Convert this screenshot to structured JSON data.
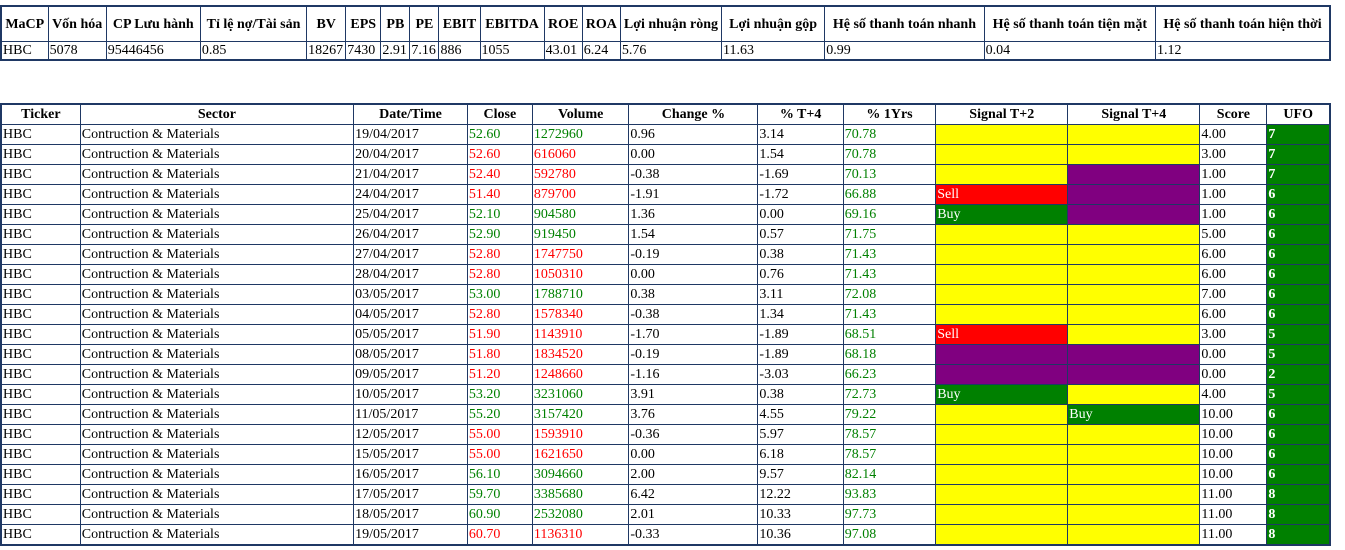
{
  "colors": {
    "border": "#1f3864",
    "up": "#008000",
    "down": "#ff0000",
    "yellow": "#ffff00",
    "purple": "#800080",
    "red": "#ff0000",
    "green": "#008000"
  },
  "summary": {
    "headers": [
      "MaCP",
      "Vốn hóa",
      "CP Lưu hành",
      "Tỉ lệ nợ/Tài sản",
      "BV",
      "EPS",
      "PB",
      "PE",
      "EBIT",
      "EBITDA",
      "ROE",
      "ROA",
      "Lợi nhuận ròng",
      "Lợi nhuận gộp",
      "Hệ số thanh toán nhanh",
      "Hệ số thanh toán tiện mặt",
      "Hệ số thanh toán hiện thời"
    ],
    "row": [
      "HBC",
      "5078",
      "95446456",
      "0.85",
      "18267",
      "7430",
      "2.91",
      "7.16",
      "886",
      "1055",
      "43.01",
      "6.24",
      "5.76",
      "11.63",
      "0.99",
      "0.04",
      "1.12"
    ]
  },
  "history": {
    "headers": [
      "Ticker",
      "Sector",
      "Date/Time",
      "Close",
      "Volume",
      "Change %",
      "% T+4",
      "% 1Yrs",
      "Signal T+2",
      "Signal T+4",
      "Score",
      "UFO"
    ],
    "rows": [
      {
        "ticker": "HBC",
        "sector": "Contruction & Materials",
        "date": "19/04/2017",
        "close": "52.60",
        "volume": "1272960",
        "change": "0.96",
        "t4": "3.14",
        "y1": "70.78",
        "s2": "",
        "s2c": "yellow",
        "s4": "",
        "s4c": "yellow",
        "score": "4.00",
        "ufo": "7",
        "dir": "up"
      },
      {
        "ticker": "HBC",
        "sector": "Contruction & Materials",
        "date": "20/04/2017",
        "close": "52.60",
        "volume": "616060",
        "change": "0.00",
        "t4": "1.54",
        "y1": "70.78",
        "s2": "",
        "s2c": "yellow",
        "s4": "",
        "s4c": "yellow",
        "score": "3.00",
        "ufo": "7",
        "dir": "down"
      },
      {
        "ticker": "HBC",
        "sector": "Contruction & Materials",
        "date": "21/04/2017",
        "close": "52.40",
        "volume": "592780",
        "change": "-0.38",
        "t4": "-1.69",
        "y1": "70.13",
        "s2": "",
        "s2c": "yellow",
        "s4": "",
        "s4c": "purple",
        "score": "1.00",
        "ufo": "7",
        "dir": "down"
      },
      {
        "ticker": "HBC",
        "sector": "Contruction & Materials",
        "date": "24/04/2017",
        "close": "51.40",
        "volume": "879700",
        "change": "-1.91",
        "t4": "-1.72",
        "y1": "66.88",
        "s2": "Sell",
        "s2c": "red",
        "s4": "",
        "s4c": "purple",
        "score": "1.00",
        "ufo": "6",
        "dir": "down"
      },
      {
        "ticker": "HBC",
        "sector": "Contruction & Materials",
        "date": "25/04/2017",
        "close": "52.10",
        "volume": "904580",
        "change": "1.36",
        "t4": "0.00",
        "y1": "69.16",
        "s2": "Buy",
        "s2c": "green",
        "s4": "",
        "s4c": "purple",
        "score": "1.00",
        "ufo": "6",
        "dir": "up"
      },
      {
        "ticker": "HBC",
        "sector": "Contruction & Materials",
        "date": "26/04/2017",
        "close": "52.90",
        "volume": "919450",
        "change": "1.54",
        "t4": "0.57",
        "y1": "71.75",
        "s2": "",
        "s2c": "yellow",
        "s4": "",
        "s4c": "yellow",
        "score": "5.00",
        "ufo": "6",
        "dir": "up"
      },
      {
        "ticker": "HBC",
        "sector": "Contruction & Materials",
        "date": "27/04/2017",
        "close": "52.80",
        "volume": "1747750",
        "change": "-0.19",
        "t4": "0.38",
        "y1": "71.43",
        "s2": "",
        "s2c": "yellow",
        "s4": "",
        "s4c": "yellow",
        "score": "6.00",
        "ufo": "6",
        "dir": "down"
      },
      {
        "ticker": "HBC",
        "sector": "Contruction & Materials",
        "date": "28/04/2017",
        "close": "52.80",
        "volume": "1050310",
        "change": "0.00",
        "t4": "0.76",
        "y1": "71.43",
        "s2": "",
        "s2c": "yellow",
        "s4": "",
        "s4c": "yellow",
        "score": "6.00",
        "ufo": "6",
        "dir": "down"
      },
      {
        "ticker": "HBC",
        "sector": "Contruction & Materials",
        "date": "03/05/2017",
        "close": "53.00",
        "volume": "1788710",
        "change": "0.38",
        "t4": "3.11",
        "y1": "72.08",
        "s2": "",
        "s2c": "yellow",
        "s4": "",
        "s4c": "yellow",
        "score": "7.00",
        "ufo": "6",
        "dir": "up"
      },
      {
        "ticker": "HBC",
        "sector": "Contruction & Materials",
        "date": "04/05/2017",
        "close": "52.80",
        "volume": "1578340",
        "change": "-0.38",
        "t4": "1.34",
        "y1": "71.43",
        "s2": "",
        "s2c": "yellow",
        "s4": "",
        "s4c": "yellow",
        "score": "6.00",
        "ufo": "6",
        "dir": "down"
      },
      {
        "ticker": "HBC",
        "sector": "Contruction & Materials",
        "date": "05/05/2017",
        "close": "51.90",
        "volume": "1143910",
        "change": "-1.70",
        "t4": "-1.89",
        "y1": "68.51",
        "s2": "Sell",
        "s2c": "red",
        "s4": "",
        "s4c": "yellow",
        "score": "3.00",
        "ufo": "5",
        "dir": "down"
      },
      {
        "ticker": "HBC",
        "sector": "Contruction & Materials",
        "date": "08/05/2017",
        "close": "51.80",
        "volume": "1834520",
        "change": "-0.19",
        "t4": "-1.89",
        "y1": "68.18",
        "s2": "",
        "s2c": "purple",
        "s4": "",
        "s4c": "purple",
        "score": "0.00",
        "ufo": "5",
        "dir": "down"
      },
      {
        "ticker": "HBC",
        "sector": "Contruction & Materials",
        "date": "09/05/2017",
        "close": "51.20",
        "volume": "1248660",
        "change": "-1.16",
        "t4": "-3.03",
        "y1": "66.23",
        "s2": "",
        "s2c": "purple",
        "s4": "",
        "s4c": "purple",
        "score": "0.00",
        "ufo": "2",
        "dir": "down"
      },
      {
        "ticker": "HBC",
        "sector": "Contruction & Materials",
        "date": "10/05/2017",
        "close": "53.20",
        "volume": "3231060",
        "change": "3.91",
        "t4": "0.38",
        "y1": "72.73",
        "s2": "Buy",
        "s2c": "green",
        "s4": "",
        "s4c": "yellow",
        "score": "4.00",
        "ufo": "5",
        "dir": "up"
      },
      {
        "ticker": "HBC",
        "sector": "Contruction & Materials",
        "date": "11/05/2017",
        "close": "55.20",
        "volume": "3157420",
        "change": "3.76",
        "t4": "4.55",
        "y1": "79.22",
        "s2": "",
        "s2c": "yellow",
        "s4": "Buy",
        "s4c": "green",
        "score": "10.00",
        "ufo": "6",
        "dir": "up"
      },
      {
        "ticker": "HBC",
        "sector": "Contruction & Materials",
        "date": "12/05/2017",
        "close": "55.00",
        "volume": "1593910",
        "change": "-0.36",
        "t4": "5.97",
        "y1": "78.57",
        "s2": "",
        "s2c": "yellow",
        "s4": "",
        "s4c": "yellow",
        "score": "10.00",
        "ufo": "6",
        "dir": "down"
      },
      {
        "ticker": "HBC",
        "sector": "Contruction & Materials",
        "date": "15/05/2017",
        "close": "55.00",
        "volume": "1621650",
        "change": "0.00",
        "t4": "6.18",
        "y1": "78.57",
        "s2": "",
        "s2c": "yellow",
        "s4": "",
        "s4c": "yellow",
        "score": "10.00",
        "ufo": "6",
        "dir": "down"
      },
      {
        "ticker": "HBC",
        "sector": "Contruction & Materials",
        "date": "16/05/2017",
        "close": "56.10",
        "volume": "3094660",
        "change": "2.00",
        "t4": "9.57",
        "y1": "82.14",
        "s2": "",
        "s2c": "yellow",
        "s4": "",
        "s4c": "yellow",
        "score": "10.00",
        "ufo": "6",
        "dir": "up"
      },
      {
        "ticker": "HBC",
        "sector": "Contruction & Materials",
        "date": "17/05/2017",
        "close": "59.70",
        "volume": "3385680",
        "change": "6.42",
        "t4": "12.22",
        "y1": "93.83",
        "s2": "",
        "s2c": "yellow",
        "s4": "",
        "s4c": "yellow",
        "score": "11.00",
        "ufo": "8",
        "dir": "up"
      },
      {
        "ticker": "HBC",
        "sector": "Contruction & Materials",
        "date": "18/05/2017",
        "close": "60.90",
        "volume": "2532080",
        "change": "2.01",
        "t4": "10.33",
        "y1": "97.73",
        "s2": "",
        "s2c": "yellow",
        "s4": "",
        "s4c": "yellow",
        "score": "11.00",
        "ufo": "8",
        "dir": "up"
      },
      {
        "ticker": "HBC",
        "sector": "Contruction & Materials",
        "date": "19/05/2017",
        "close": "60.70",
        "volume": "1136310",
        "change": "-0.33",
        "t4": "10.36",
        "y1": "97.08",
        "s2": "",
        "s2c": "yellow",
        "s4": "",
        "s4c": "yellow",
        "score": "11.00",
        "ufo": "8",
        "dir": "down"
      }
    ]
  }
}
